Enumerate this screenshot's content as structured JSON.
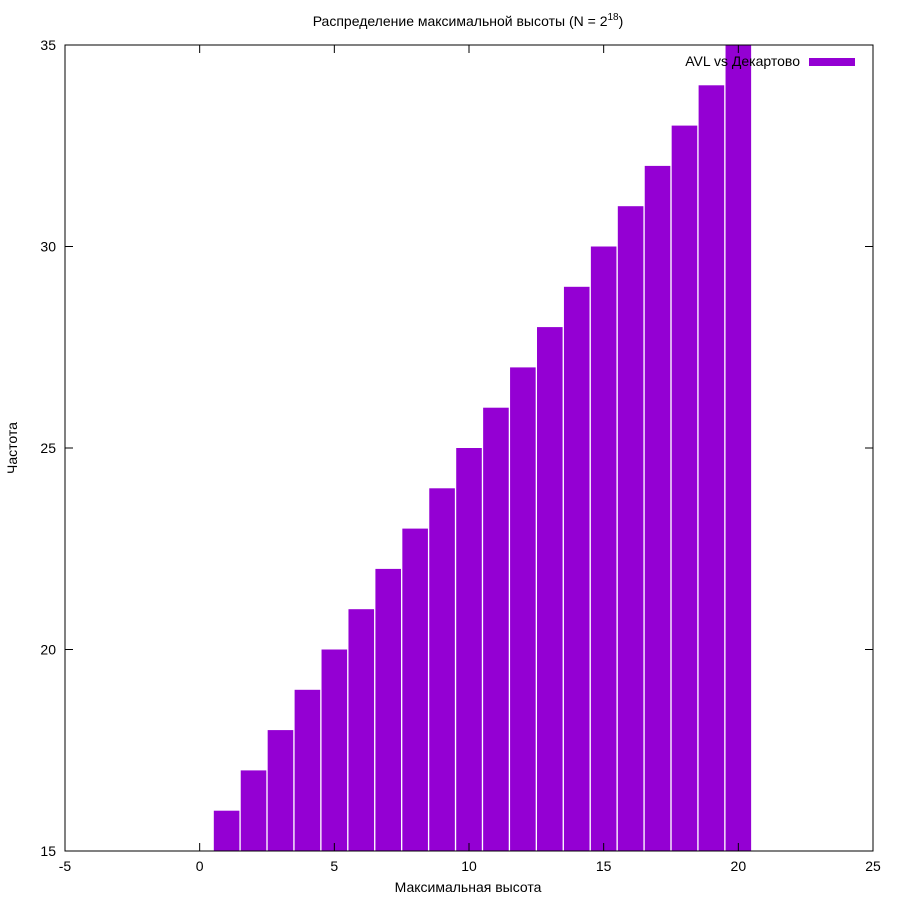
{
  "chart_data": {
    "type": "bar",
    "title_main": "Распределение максимальной высоты (N = 2",
    "title_superscript": "18",
    "title_end": ")",
    "xlabel": "Максимальная высота",
    "ylabel": "Частота",
    "xlim": [
      -5,
      25
    ],
    "ylim": [
      15,
      35
    ],
    "xticks": [
      "-5",
      "0",
      "5",
      "10",
      "15",
      "20",
      "25"
    ],
    "yticks": [
      "15",
      "20",
      "25",
      "30",
      "35"
    ],
    "grid": false,
    "legend_position": "top-right",
    "bar_color": "#9400d3",
    "series": [
      {
        "name": "AVL vs Декартово",
        "x": [
          1,
          2,
          3,
          4,
          5,
          6,
          7,
          8,
          9,
          10,
          11,
          12,
          13,
          14,
          15,
          16,
          17,
          18,
          19,
          20
        ],
        "values": [
          16,
          17,
          18,
          19,
          20,
          21,
          22,
          23,
          24,
          25,
          26,
          27,
          28,
          29,
          30,
          31,
          32,
          33,
          34,
          35
        ]
      }
    ]
  }
}
